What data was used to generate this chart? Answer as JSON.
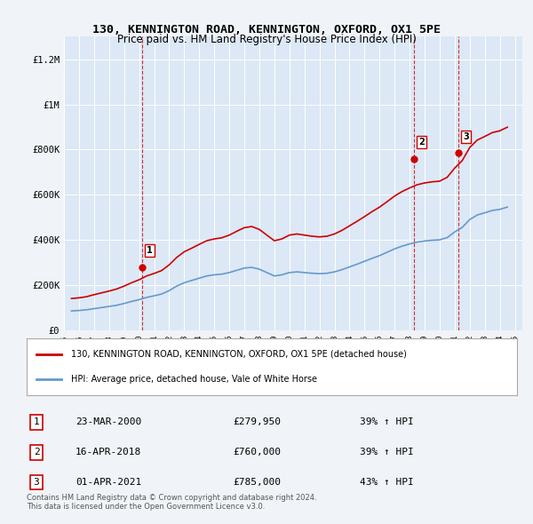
{
  "title": "130, KENNINGTON ROAD, KENNINGTON, OXFORD, OX1 5PE",
  "subtitle": "Price paid vs. HM Land Registry's House Price Index (HPI)",
  "background_color": "#f0f4f8",
  "plot_bg_color": "#dce8f5",
  "legend_label_red": "130, KENNINGTON ROAD, KENNINGTON, OXFORD, OX1 5PE (detached house)",
  "legend_label_blue": "HPI: Average price, detached house, Vale of White Horse",
  "footer": "Contains HM Land Registry data © Crown copyright and database right 2024.\nThis data is licensed under the Open Government Licence v3.0.",
  "transactions": [
    {
      "num": 1,
      "date": "23-MAR-2000",
      "price": 279950,
      "hpi_pct": "39% ↑ HPI",
      "x_year": 2000.22
    },
    {
      "num": 2,
      "date": "16-APR-2018",
      "price": 760000,
      "hpi_pct": "39% ↑ HPI",
      "x_year": 2018.29
    },
    {
      "num": 3,
      "date": "01-APR-2021",
      "price": 785000,
      "hpi_pct": "43% ↑ HPI",
      "x_year": 2021.25
    }
  ],
  "ylim": [
    0,
    1300000
  ],
  "xlim_start": 1995.0,
  "xlim_end": 2025.5,
  "yticks": [
    0,
    200000,
    400000,
    600000,
    800000,
    1000000,
    1200000
  ],
  "ytick_labels": [
    "£0",
    "£200K",
    "£400K",
    "£600K",
    "£800K",
    "£1M",
    "£1.2M"
  ],
  "xtick_years": [
    1995,
    1996,
    1997,
    1998,
    1999,
    2000,
    2001,
    2002,
    2003,
    2004,
    2005,
    2006,
    2007,
    2008,
    2009,
    2010,
    2011,
    2012,
    2013,
    2014,
    2015,
    2016,
    2017,
    2018,
    2019,
    2020,
    2021,
    2022,
    2023,
    2024,
    2025
  ],
  "red_line_color": "#cc0000",
  "blue_line_color": "#6699cc",
  "vline_color": "#cc0000",
  "hpi_data": {
    "years": [
      1995.5,
      1996.0,
      1996.5,
      1997.0,
      1997.5,
      1998.0,
      1998.5,
      1999.0,
      1999.5,
      2000.0,
      2000.5,
      2001.0,
      2001.5,
      2002.0,
      2002.5,
      2003.0,
      2003.5,
      2004.0,
      2004.5,
      2005.0,
      2005.5,
      2006.0,
      2006.5,
      2007.0,
      2007.5,
      2008.0,
      2008.5,
      2009.0,
      2009.5,
      2010.0,
      2010.5,
      2011.0,
      2011.5,
      2012.0,
      2012.5,
      2013.0,
      2013.5,
      2014.0,
      2014.5,
      2015.0,
      2015.5,
      2016.0,
      2016.5,
      2017.0,
      2017.5,
      2018.0,
      2018.5,
      2019.0,
      2019.5,
      2020.0,
      2020.5,
      2021.0,
      2021.5,
      2022.0,
      2022.5,
      2023.0,
      2023.5,
      2024.0,
      2024.5
    ],
    "values": [
      85000,
      87000,
      90000,
      95000,
      100000,
      105000,
      110000,
      118000,
      127000,
      135000,
      145000,
      152000,
      160000,
      175000,
      195000,
      210000,
      220000,
      230000,
      240000,
      245000,
      248000,
      255000,
      265000,
      275000,
      278000,
      270000,
      255000,
      240000,
      245000,
      255000,
      258000,
      255000,
      252000,
      250000,
      252000,
      258000,
      268000,
      280000,
      292000,
      305000,
      318000,
      330000,
      345000,
      360000,
      372000,
      382000,
      390000,
      395000,
      398000,
      400000,
      410000,
      435000,
      455000,
      490000,
      510000,
      520000,
      530000,
      535000,
      545000
    ]
  },
  "property_hpi_data": {
    "years": [
      1995.5,
      1996.0,
      1996.5,
      1997.0,
      1997.5,
      1998.0,
      1998.5,
      1999.0,
      1999.5,
      2000.0,
      2000.5,
      2001.0,
      2001.5,
      2002.0,
      2002.5,
      2003.0,
      2003.5,
      2004.0,
      2004.5,
      2005.0,
      2005.5,
      2006.0,
      2006.5,
      2007.0,
      2007.5,
      2008.0,
      2008.5,
      2009.0,
      2009.5,
      2010.0,
      2010.5,
      2011.0,
      2011.5,
      2012.0,
      2012.5,
      2013.0,
      2013.5,
      2014.0,
      2014.5,
      2015.0,
      2015.5,
      2016.0,
      2016.5,
      2017.0,
      2017.5,
      2018.0,
      2018.5,
      2019.0,
      2019.5,
      2020.0,
      2020.5,
      2021.0,
      2021.5,
      2022.0,
      2022.5,
      2023.0,
      2023.5,
      2024.0,
      2024.5
    ],
    "values": [
      140000,
      143000,
      148000,
      157000,
      165000,
      173000,
      182000,
      195000,
      210000,
      223000,
      240000,
      251000,
      264000,
      289000,
      322000,
      347000,
      363000,
      380000,
      396000,
      404000,
      409000,
      421000,
      438000,
      454000,
      459000,
      446000,
      421000,
      396000,
      404000,
      421000,
      426000,
      421000,
      416000,
      413000,
      416000,
      426000,
      442000,
      462000,
      482000,
      503000,
      525000,
      545000,
      569000,
      594000,
      614000,
      630000,
      644000,
      652000,
      657000,
      660000,
      677000,
      718000,
      751000,
      809000,
      842000,
      858000,
      875000,
      883000,
      899000
    ]
  }
}
